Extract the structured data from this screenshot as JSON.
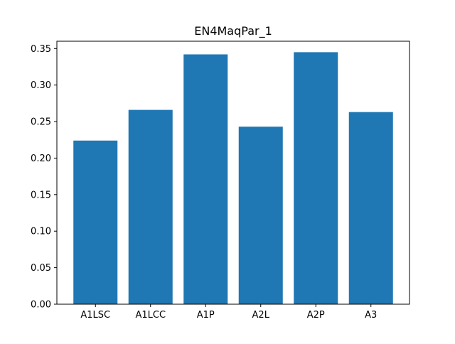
{
  "chart_data": {
    "type": "bar",
    "title": "EN4MaqPar_1",
    "xlabel": "",
    "ylabel": "",
    "categories": [
      "A1LSC",
      "A1LCC",
      "A1P",
      "A2L",
      "A2P",
      "A3"
    ],
    "values": [
      0.224,
      0.266,
      0.342,
      0.243,
      0.345,
      0.263
    ],
    "ylim": [
      0,
      0.36
    ],
    "yticks": [
      "0.00",
      "0.05",
      "0.10",
      "0.15",
      "0.20",
      "0.25",
      "0.30",
      "0.35"
    ],
    "grid": false,
    "legend": "none",
    "bar_color": "#1f77b4"
  }
}
